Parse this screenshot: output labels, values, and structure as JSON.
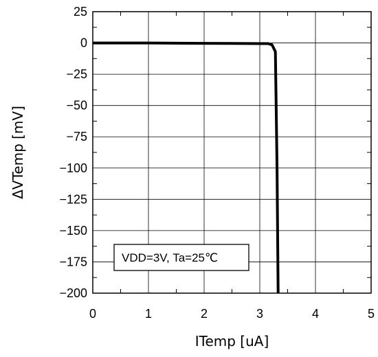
{
  "chart_data": {
    "type": "line",
    "title": "",
    "xlabel": "ITemp [uA]",
    "ylabel": "ΔVTemp [mV]",
    "xlim": [
      0,
      5
    ],
    "ylim": [
      -200,
      25
    ],
    "xticks": [
      0,
      1,
      2,
      3,
      4,
      5
    ],
    "yticks": [
      25,
      0,
      -25,
      -50,
      -75,
      -100,
      -125,
      -150,
      -175,
      -200
    ],
    "grid": true,
    "legend": "none",
    "annotation": "VDD=3V, Ta=25℃",
    "series": [
      {
        "color": "#000000",
        "x": [
          0,
          1,
          2,
          2.5,
          3.0,
          3.15,
          3.22,
          3.28,
          3.31,
          3.33
        ],
        "y": [
          0,
          0,
          -0.3,
          -0.4,
          -0.5,
          -0.5,
          -1.5,
          -7,
          -100,
          -200
        ]
      }
    ]
  }
}
